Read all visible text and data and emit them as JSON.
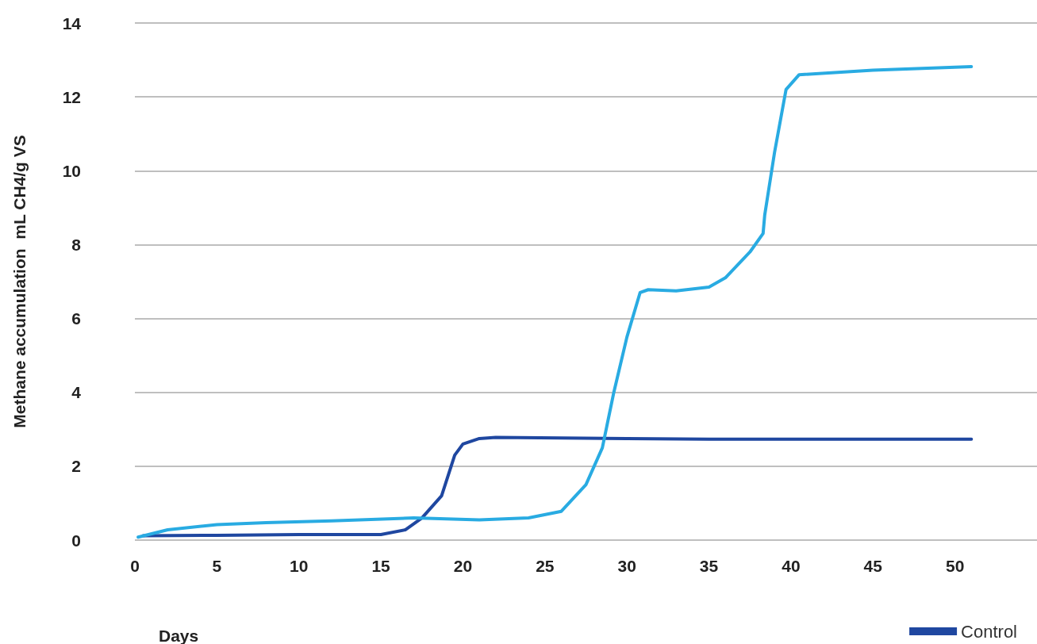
{
  "chart_data": {
    "type": "line",
    "xlabel": "Days",
    "ylabel": "Methane accumulation  mL CH4/g VS",
    "xlim": [
      0,
      55
    ],
    "xticks": [
      0,
      5,
      10,
      15,
      20,
      25,
      30,
      35,
      40,
      45,
      50
    ],
    "ylim": [
      0,
      14
    ],
    "yticks": [
      0,
      2,
      4,
      6,
      8,
      10,
      12,
      14
    ],
    "grid": "y",
    "legend": "bottom right",
    "marker": "none",
    "line_style": "solid",
    "series": [
      {
        "name": "Control",
        "color": "#1f47a0",
        "x": [
          0.5,
          5,
          10,
          12,
          15,
          16.5,
          17.5,
          18.7,
          19.5,
          20,
          21,
          22,
          30,
          35,
          51
        ],
        "values": [
          0.12,
          0.13,
          0.15,
          0.15,
          0.15,
          0.28,
          0.6,
          1.2,
          2.3,
          2.6,
          2.75,
          2.78,
          2.75,
          2.73,
          2.73
        ]
      },
      {
        "color": "#29abe2",
        "x": [
          0.2,
          2,
          5,
          8,
          12,
          17,
          21,
          24,
          26,
          27.5,
          28.5,
          29.2,
          30,
          30.8,
          31.3,
          33,
          35,
          36,
          37.5,
          38.3,
          38.4,
          39,
          39.7,
          40.5,
          45,
          51
        ],
        "values": [
          0.08,
          0.28,
          0.42,
          0.47,
          0.52,
          0.6,
          0.55,
          0.6,
          0.78,
          1.5,
          2.5,
          4,
          5.5,
          6.7,
          6.78,
          6.75,
          6.85,
          7.1,
          7.8,
          8.3,
          8.8,
          10.5,
          12.2,
          12.6,
          12.72,
          12.82
        ]
      }
    ]
  }
}
